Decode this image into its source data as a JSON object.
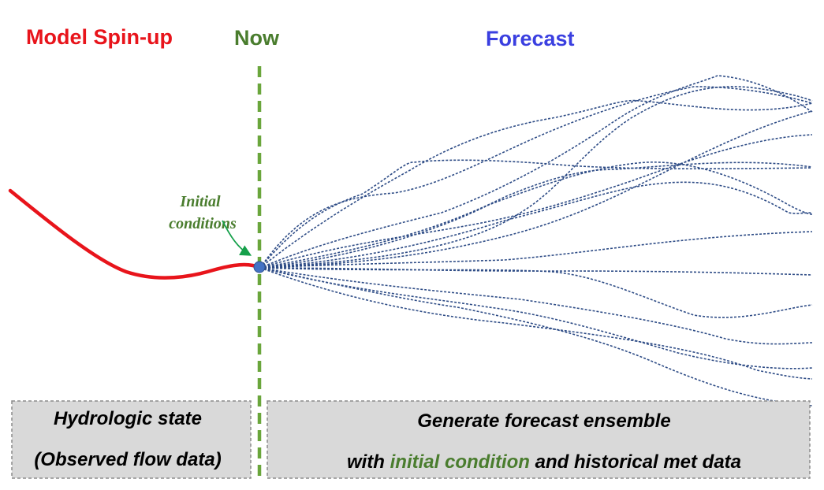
{
  "titles": {
    "spinup": "Model Spin-up",
    "now": "Now",
    "forecast": "Forecast"
  },
  "initial_conditions": {
    "line1": "Initial",
    "line2": "conditions"
  },
  "left_box": {
    "line1": "Hydrologic state",
    "line2": "(Observed flow data)"
  },
  "right_box": {
    "line1": "Generate forecast ensemble",
    "line2_prefix": "with ",
    "line2_highlight": "initial condition",
    "line2_suffix": " and historical met data"
  },
  "colors": {
    "spinup": "#e8141b",
    "now": "#4a7d2e",
    "forecast": "#3a3fe0",
    "ensemble": "#2e4c86",
    "divider": "#6aa63c",
    "box_fill": "#d9d9d9",
    "box_border": "#8c8c8c",
    "point": "#4472c4"
  }
}
